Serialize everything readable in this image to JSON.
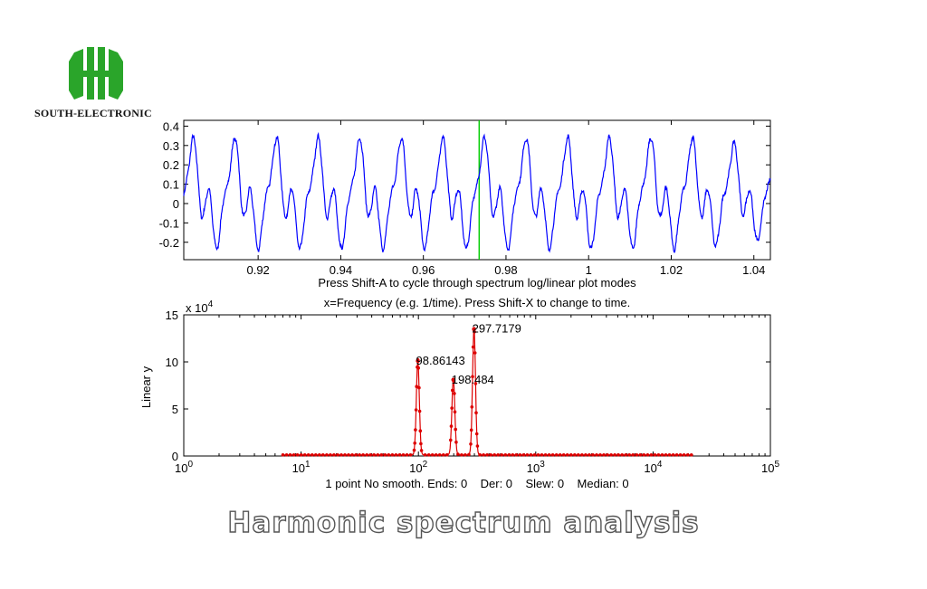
{
  "brand": {
    "name": "SOUTH-ELECTRONIC",
    "logo_color": "#2aa52a"
  },
  "footer_title": "Harmonic spectrum analysis",
  "chart_data": [
    {
      "type": "line",
      "color": "#0000ff",
      "xlim": [
        0.902,
        1.044
      ],
      "ylim": [
        -0.29,
        0.43
      ],
      "x_ticks": [
        0.92,
        0.94,
        0.96,
        0.98,
        1,
        1.02,
        1.04
      ],
      "x_tick_labels": [
        "0.92",
        "0.94",
        "0.96",
        "0.98",
        "1",
        "1.02",
        "1.04"
      ],
      "y_ticks": [
        0.4,
        0.3,
        0.2,
        0.1,
        0,
        -0.1,
        -0.2
      ],
      "y_tick_labels": [
        "0.4",
        "0.3",
        "0.2",
        "0.1",
        "0",
        "-0.1",
        "-0.2"
      ],
      "cursor_x": 0.9735,
      "cursor_color": "#00cc00",
      "period": 0.01007,
      "caption": "Press Shift-A to cycle through spectrum log/linear plot modes"
    },
    {
      "type": "line",
      "scale": "log-x",
      "color": "#dd0000",
      "xlim": [
        1,
        100000
      ],
      "ylim": [
        0,
        15
      ],
      "x_ticks": [
        1,
        10,
        100,
        1000,
        10000,
        100000
      ],
      "x_tick_labels": [
        [
          "10",
          "0"
        ],
        [
          "10",
          "1"
        ],
        [
          "10",
          "2"
        ],
        [
          "10",
          "3"
        ],
        [
          "10",
          "4"
        ],
        [
          "10",
          "5"
        ]
      ],
      "y_ticks": [
        0,
        5,
        10,
        15
      ],
      "y_tick_labels": [
        "0",
        "5",
        "10",
        "15"
      ],
      "y_multiplier_label": [
        "x 10",
        "4"
      ],
      "ylabel": "Linear y",
      "title": "x=Frequency (e.g. 1/time). Press Shift-X to change to time.",
      "peaks": [
        {
          "label": "98.86143",
          "x": 98.86,
          "y": 10.1
        },
        {
          "label": "198.484",
          "x": 198.48,
          "y": 8.1
        },
        {
          "label": "297.7179",
          "x": 297.72,
          "y": 13.5
        }
      ],
      "caption": "1 point No smooth. Ends: 0    Der: 0    Slew: 0    Median: 0"
    }
  ]
}
